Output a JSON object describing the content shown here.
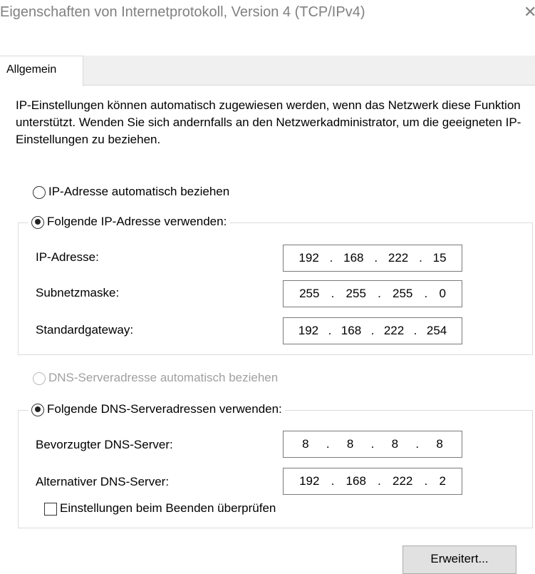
{
  "window": {
    "title": "Eigenschaften von Internetprotokoll, Version 4 (TCP/IPv4)",
    "close_icon": "close-icon"
  },
  "tabs": [
    {
      "label": "Allgemein",
      "active": true
    }
  ],
  "description": "IP-Einstellungen können automatisch zugewiesen werden, wenn das Netzwerk diese Funktion unterstützt. Wenden Sie sich andernfalls an den Netzwerkadministrator, um die geeigneten IP-Einstellungen zu beziehen.",
  "ip": {
    "auto_label": "IP-Adresse automatisch beziehen",
    "auto_selected": false,
    "manual_label": "Folgende IP-Adresse verwenden:",
    "manual_selected": true,
    "fields": [
      {
        "label": "IP-Adresse:",
        "octets": [
          "192",
          "168",
          "222",
          "15"
        ]
      },
      {
        "label": "Subnetzmaske:",
        "octets": [
          "255",
          "255",
          "255",
          "0"
        ]
      },
      {
        "label": "Standardgateway:",
        "octets": [
          "192",
          "168",
          "222",
          "254"
        ]
      }
    ]
  },
  "dns": {
    "auto_label": "DNS-Serveradresse automatisch beziehen",
    "auto_selected": false,
    "auto_disabled": true,
    "manual_label": "Folgende DNS-Serveradressen verwenden:",
    "manual_selected": true,
    "fields": [
      {
        "label": "Bevorzugter DNS-Server:",
        "octets": [
          "8",
          "8",
          "8",
          "8"
        ]
      },
      {
        "label": "Alternativer DNS-Server:",
        "octets": [
          "192",
          "168",
          "222",
          "2"
        ]
      }
    ]
  },
  "validate": {
    "label": "Einstellungen beim Beenden überprüfen",
    "checked": false
  },
  "advanced_button": "Erweitert..."
}
